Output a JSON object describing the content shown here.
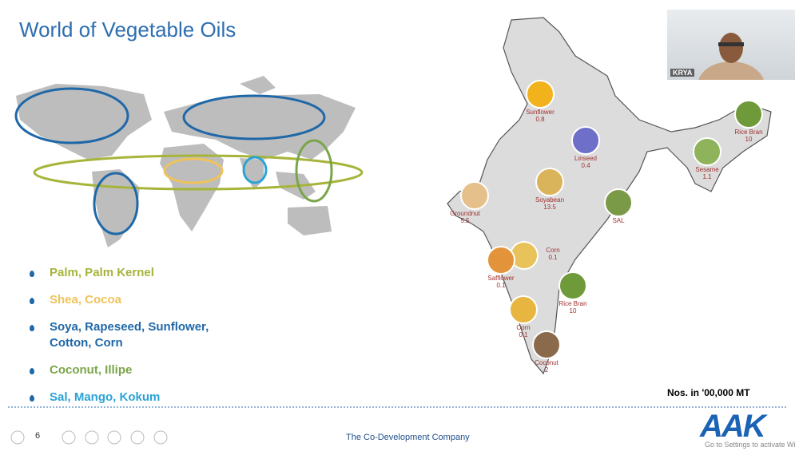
{
  "slide": {
    "title": "World of Vegetable Oils",
    "regions": [
      {
        "text": "Palm, Palm Kernel",
        "color": "#a6b43a"
      },
      {
        "text": "Shea, Cocoa",
        "color": "#f0c35a"
      },
      {
        "text": "Soya, Rapeseed, Sunflower, Cotton, Corn",
        "color": "#1f68a8"
      },
      {
        "text": "Coconut, Illipe",
        "color": "#7aa548"
      },
      {
        "text": "Sal, Mango, Kokum",
        "color": "#2aa3d6"
      }
    ],
    "oils": [
      {
        "name": "Sunflower",
        "value": 0.8
      },
      {
        "name": "Linseed",
        "value": 0.4
      },
      {
        "name": "Rice Bran",
        "value": 10
      },
      {
        "name": "Sesame",
        "value": 1.1
      },
      {
        "name": "Soyabean",
        "value": 13.5
      },
      {
        "name": "SAL"
      },
      {
        "name": "Groundnut",
        "value": 5.5
      },
      {
        "name": "Corn",
        "value": 0.1
      },
      {
        "name": "Safflower",
        "value": 0.1
      },
      {
        "name": "Rice Bran",
        "value": 10
      },
      {
        "name": "Corn",
        "value": 0.1
      },
      {
        "name": "Coconut",
        "value": 2
      }
    ],
    "unit_note": "Nos. in '00,000 MT",
    "footer": "The Co-Development Company",
    "page": 6,
    "logo": "AAK"
  },
  "video": {
    "name": "KRYA"
  },
  "watermark": "Go to Settings to activate Wi"
}
